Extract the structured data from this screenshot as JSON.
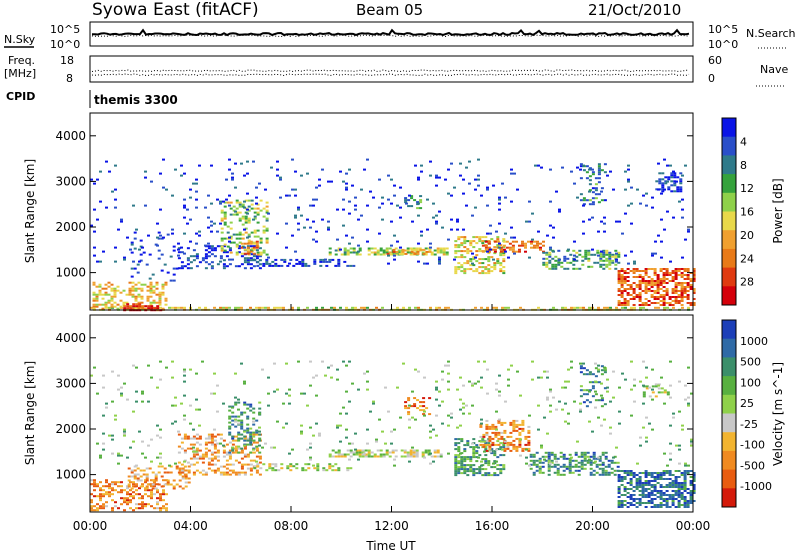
{
  "header": {
    "station": "Syowa East (fitACF)",
    "beam": "Beam 05",
    "date": "21/Oct/2010"
  },
  "chart_data": [
    {
      "type": "line",
      "panel": "noise",
      "labels": {
        "left": "N.Sky",
        "right": "N.Search"
      },
      "left_ticks": [
        "10^5",
        "10^0"
      ],
      "right_ticks": [
        "10^5",
        "10^0"
      ],
      "legend_style": "dotted"
    },
    {
      "type": "scatter",
      "panel": "frequency",
      "labels": {
        "left_top": "Freq.",
        "left_bottom": "[MHz]",
        "right": "Nave"
      },
      "left_ticks": [
        "18",
        "8"
      ],
      "right_ticks": [
        "60",
        "0"
      ],
      "freq_ylim": [
        8,
        18
      ],
      "nave_ylim": [
        0,
        60
      ],
      "legend_style": "dotted"
    },
    {
      "type": "table",
      "panel": "cpid",
      "label": "CPID",
      "program": "themis 3300"
    },
    {
      "type": "heatmap",
      "panel": "power",
      "ylabel": "Slant Range [km]",
      "xlim": [
        0,
        24
      ],
      "ylim": [
        180,
        4500
      ],
      "y_ticks": [
        1000,
        2000,
        3000,
        4000
      ],
      "colorbar": {
        "label": "Power [dB]",
        "ticks": [
          "4",
          "8",
          "12",
          "16",
          "20",
          "24",
          "28"
        ],
        "colors": [
          "#0a14e6",
          "#2a4fc9",
          "#2f7a8a",
          "#35a23c",
          "#8fd14a",
          "#e8d84a",
          "#f0a030",
          "#e87a18",
          "#e03a10",
          "#d4000a"
        ]
      },
      "clusters": [
        {
          "t0": 0.0,
          "t1": 24.0,
          "r0": 190,
          "r1": 250,
          "value": 0.55,
          "density": 0.55
        },
        {
          "t0": 0.1,
          "t1": 3.0,
          "r0": 220,
          "r1": 800,
          "value": 0.6,
          "density": 0.4
        },
        {
          "t0": 1.2,
          "t1": 2.8,
          "r0": 190,
          "r1": 330,
          "value": 0.92,
          "density": 0.6
        },
        {
          "t0": 1.5,
          "t1": 3.5,
          "r0": 800,
          "r1": 1900,
          "value": 0.08,
          "density": 0.1
        },
        {
          "t0": 3.5,
          "t1": 6.8,
          "r0": 1100,
          "r1": 1600,
          "value": 0.12,
          "density": 0.3
        },
        {
          "t0": 5.2,
          "t1": 7.0,
          "r0": 1400,
          "r1": 2600,
          "value": 0.45,
          "density": 0.3
        },
        {
          "t0": 6.0,
          "t1": 6.6,
          "r0": 1400,
          "r1": 1700,
          "value": 0.7,
          "density": 0.5
        },
        {
          "t0": 6.5,
          "t1": 10.5,
          "r0": 1150,
          "r1": 1300,
          "value": 0.12,
          "density": 0.35
        },
        {
          "t0": 9.5,
          "t1": 14.2,
          "r0": 1380,
          "r1": 1550,
          "value": 0.45,
          "density": 0.6
        },
        {
          "t0": 11.8,
          "t1": 13.5,
          "r0": 1400,
          "r1": 1520,
          "value": 0.7,
          "density": 0.5
        },
        {
          "t0": 12.5,
          "t1": 13.2,
          "r0": 2400,
          "r1": 2700,
          "value": 0.3,
          "density": 0.3
        },
        {
          "t0": 14.5,
          "t1": 16.5,
          "r0": 1000,
          "r1": 1800,
          "value": 0.55,
          "density": 0.45
        },
        {
          "t0": 15.6,
          "t1": 18.0,
          "r0": 1450,
          "r1": 1700,
          "value": 0.75,
          "density": 0.55
        },
        {
          "t0": 18.0,
          "t1": 21.0,
          "r0": 1100,
          "r1": 1500,
          "value": 0.35,
          "density": 0.45
        },
        {
          "t0": 19.5,
          "t1": 20.5,
          "r0": 2500,
          "r1": 3400,
          "value": 0.25,
          "density": 0.25
        },
        {
          "t0": 21.0,
          "t1": 24.0,
          "r0": 300,
          "r1": 1100,
          "value": 0.8,
          "density": 0.6
        },
        {
          "t0": 22.5,
          "t1": 23.5,
          "r0": 2800,
          "r1": 3200,
          "value": 0.1,
          "density": 0.4
        },
        {
          "t0": 0.0,
          "t1": 24.0,
          "r0": 1200,
          "r1": 3500,
          "value": 0.1,
          "density": 0.04
        }
      ]
    },
    {
      "type": "heatmap",
      "panel": "velocity",
      "ylabel": "Slant Range [km]",
      "xlabel": "Time UT",
      "xlim": [
        0,
        24
      ],
      "ylim": [
        180,
        4500
      ],
      "y_ticks": [
        1000,
        2000,
        3000,
        4000
      ],
      "x_ticks": [
        "00:00",
        "04:00",
        "08:00",
        "12:00",
        "16:00",
        "20:00",
        "00:00"
      ],
      "colorbar": {
        "label": "Velocity [m s^-1]",
        "ticks": [
          "1000",
          "500",
          "100",
          "25",
          "-25",
          "-100",
          "-500",
          "-1000"
        ],
        "colors": [
          "#1c3fb8",
          "#2f6aa6",
          "#3b8f6a",
          "#58b040",
          "#8fd14a",
          "#c8c8c8",
          "#f2b430",
          "#f08a20",
          "#e85c10",
          "#d41a0a"
        ]
      },
      "clusters": [
        {
          "t0": 0.0,
          "t1": 3.0,
          "r0": 200,
          "r1": 900,
          "value": 0.75,
          "density": 0.45
        },
        {
          "t0": 1.5,
          "t1": 4.0,
          "r0": 700,
          "r1": 1200,
          "value": 0.7,
          "density": 0.35
        },
        {
          "t0": 3.5,
          "t1": 6.8,
          "r0": 1000,
          "r1": 1900,
          "value": 0.7,
          "density": 0.35
        },
        {
          "t0": 5.5,
          "t1": 6.8,
          "r0": 1500,
          "r1": 2600,
          "value": 0.25,
          "density": 0.3
        },
        {
          "t0": 6.5,
          "t1": 10.5,
          "r0": 1100,
          "r1": 1250,
          "value": 0.5,
          "density": 0.45
        },
        {
          "t0": 9.5,
          "t1": 14.0,
          "r0": 1380,
          "r1": 1550,
          "value": 0.5,
          "density": 0.6
        },
        {
          "t0": 12.5,
          "t1": 13.5,
          "r0": 2300,
          "r1": 2700,
          "value": 0.75,
          "density": 0.35
        },
        {
          "t0": 14.5,
          "t1": 16.5,
          "r0": 1000,
          "r1": 1800,
          "value": 0.3,
          "density": 0.45
        },
        {
          "t0": 15.5,
          "t1": 17.5,
          "r0": 1500,
          "r1": 2200,
          "value": 0.75,
          "density": 0.4
        },
        {
          "t0": 17.5,
          "t1": 21.0,
          "r0": 1000,
          "r1": 1500,
          "value": 0.25,
          "density": 0.45
        },
        {
          "t0": 19.5,
          "t1": 20.5,
          "r0": 2500,
          "r1": 3400,
          "value": 0.25,
          "density": 0.25
        },
        {
          "t0": 21.0,
          "t1": 24.0,
          "r0": 300,
          "r1": 1100,
          "value": 0.15,
          "density": 0.6
        },
        {
          "t0": 22.0,
          "t1": 23.0,
          "r0": 2700,
          "r1": 3000,
          "value": 0.5,
          "density": 0.4
        },
        {
          "t0": 0.0,
          "t1": 24.0,
          "r0": 1200,
          "r1": 3500,
          "value": 0.4,
          "density": 0.04
        }
      ]
    }
  ]
}
